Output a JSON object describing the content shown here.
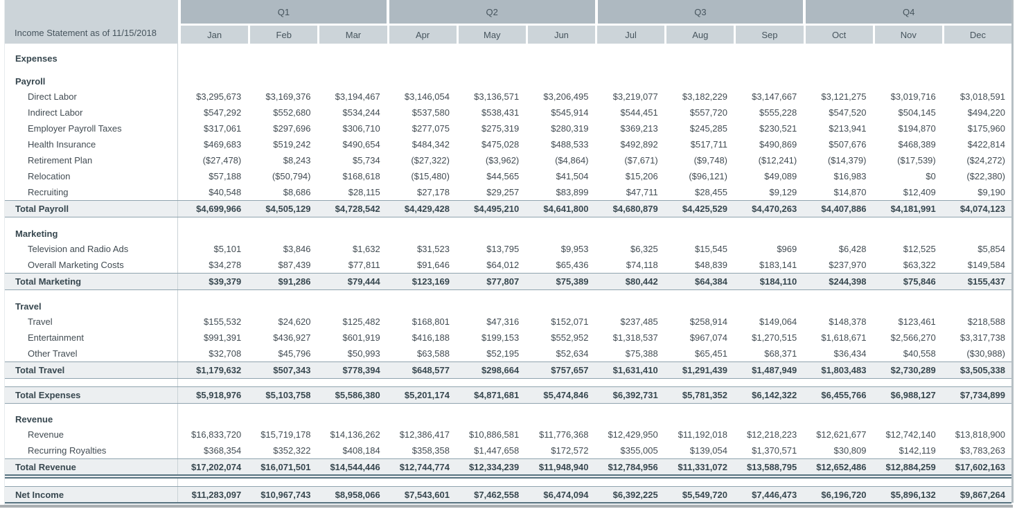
{
  "header": {
    "title": "Income Statement as of 11/15/2018",
    "quarters": [
      {
        "label": "Q1",
        "months": [
          "Jan",
          "Feb",
          "Mar"
        ]
      },
      {
        "label": "Q2",
        "months": [
          "Apr",
          "May",
          "Jun"
        ]
      },
      {
        "label": "Q3",
        "months": [
          "Jul",
          "Aug",
          "Sep"
        ]
      },
      {
        "label": "Q4",
        "months": [
          "Oct",
          "Nov",
          "Dec"
        ]
      }
    ]
  },
  "colors": {
    "quarter_header_bg": "#aeb9c1",
    "month_header_bg": "#ccd4d9",
    "total_row_bg": "#eceff1",
    "total_row_border": "#8fa3ae",
    "double_rule": "#587380",
    "text": "#37474f"
  },
  "table": {
    "rows": [
      {
        "type": "spacer",
        "h": 10
      },
      {
        "type": "section",
        "label": "Expenses"
      },
      {
        "type": "spacer",
        "h": 11
      },
      {
        "type": "section",
        "label": "Payroll"
      },
      {
        "type": "item",
        "label": "Direct Labor",
        "values": [
          "$3,295,673",
          "$3,169,376",
          "$3,194,467",
          "$3,146,054",
          "$3,136,571",
          "$3,206,495",
          "$3,219,077",
          "$3,182,229",
          "$3,147,667",
          "$3,121,275",
          "$3,019,716",
          "$3,018,591"
        ]
      },
      {
        "type": "item",
        "label": "Indirect Labor",
        "values": [
          "$547,292",
          "$552,680",
          "$534,244",
          "$537,580",
          "$538,431",
          "$545,914",
          "$544,451",
          "$557,720",
          "$555,228",
          "$547,520",
          "$504,145",
          "$494,220"
        ]
      },
      {
        "type": "item",
        "label": "Employer Payroll Taxes",
        "values": [
          "$317,061",
          "$297,696",
          "$306,710",
          "$277,075",
          "$275,319",
          "$280,319",
          "$369,213",
          "$245,285",
          "$230,521",
          "$213,941",
          "$194,870",
          "$175,960"
        ]
      },
      {
        "type": "item",
        "label": "Health Insurance",
        "values": [
          "$469,683",
          "$519,242",
          "$490,654",
          "$484,342",
          "$475,028",
          "$488,533",
          "$492,892",
          "$517,711",
          "$490,869",
          "$507,676",
          "$468,389",
          "$422,814"
        ]
      },
      {
        "type": "item",
        "label": "Retirement Plan",
        "values": [
          "($27,478)",
          "$8,243",
          "$5,734",
          "($27,322)",
          "($3,962)",
          "($4,864)",
          "($7,671)",
          "($9,748)",
          "($12,241)",
          "($14,379)",
          "($17,539)",
          "($24,272)"
        ]
      },
      {
        "type": "item",
        "label": "Relocation",
        "values": [
          "$57,188",
          "($50,794)",
          "$168,618",
          "($15,480)",
          "$44,565",
          "$41,504",
          "$15,206",
          "($96,121)",
          "$49,089",
          "$16,983",
          "$0",
          "($22,380)"
        ]
      },
      {
        "type": "item",
        "label": "Recruiting",
        "values": [
          "$40,548",
          "$8,686",
          "$28,115",
          "$27,178",
          "$29,257",
          "$83,899",
          "$47,711",
          "$28,455",
          "$9,129",
          "$14,870",
          "$12,409",
          "$9,190"
        ]
      },
      {
        "type": "total",
        "label": "Total Payroll",
        "values": [
          "$4,699,966",
          "$4,505,129",
          "$4,728,542",
          "$4,429,428",
          "$4,495,210",
          "$4,641,800",
          "$4,680,879",
          "$4,425,529",
          "$4,470,263",
          "$4,407,886",
          "$4,181,991",
          "$4,074,123"
        ]
      },
      {
        "type": "spacer",
        "h": 12
      },
      {
        "type": "section",
        "label": "Marketing"
      },
      {
        "type": "item",
        "label": "Television and Radio Ads",
        "values": [
          "$5,101",
          "$3,846",
          "$1,632",
          "$31,523",
          "$13,795",
          "$9,953",
          "$6,325",
          "$15,545",
          "$969",
          "$6,428",
          "$12,525",
          "$5,854"
        ]
      },
      {
        "type": "item",
        "label": "Overall Marketing Costs",
        "values": [
          "$34,278",
          "$87,439",
          "$77,811",
          "$91,646",
          "$64,012",
          "$65,436",
          "$74,118",
          "$48,839",
          "$183,141",
          "$237,970",
          "$63,322",
          "$149,584"
        ]
      },
      {
        "type": "total",
        "label": "Total Marketing",
        "values": [
          "$39,379",
          "$91,286",
          "$79,444",
          "$123,169",
          "$77,807",
          "$75,389",
          "$80,442",
          "$64,384",
          "$184,110",
          "$244,398",
          "$75,846",
          "$155,437"
        ]
      },
      {
        "type": "spacer",
        "h": 12
      },
      {
        "type": "section",
        "label": "Travel"
      },
      {
        "type": "item",
        "label": "Travel",
        "values": [
          "$155,532",
          "$24,620",
          "$125,482",
          "$168,801",
          "$47,316",
          "$152,071",
          "$237,485",
          "$258,914",
          "$149,064",
          "$148,378",
          "$123,461",
          "$218,588"
        ]
      },
      {
        "type": "item",
        "label": "Entertainment",
        "values": [
          "$991,391",
          "$436,927",
          "$601,919",
          "$416,188",
          "$199,153",
          "$552,952",
          "$1,318,537",
          "$967,074",
          "$1,270,515",
          "$1,618,671",
          "$2,566,270",
          "$3,317,738"
        ]
      },
      {
        "type": "item",
        "label": "Other Travel",
        "values": [
          "$32,708",
          "$45,796",
          "$50,993",
          "$63,588",
          "$52,195",
          "$52,634",
          "$75,388",
          "$65,451",
          "$68,371",
          "$36,434",
          "$40,558",
          "($30,988)"
        ]
      },
      {
        "type": "total",
        "label": "Total Travel",
        "values": [
          "$1,179,632",
          "$507,343",
          "$778,394",
          "$648,577",
          "$298,664",
          "$757,657",
          "$1,631,410",
          "$1,291,439",
          "$1,487,949",
          "$1,803,483",
          "$2,730,289",
          "$3,505,338"
        ]
      },
      {
        "type": "spacer",
        "h": 11
      },
      {
        "type": "total",
        "label": "Total Expenses",
        "values": [
          "$5,918,976",
          "$5,103,758",
          "$5,586,380",
          "$5,201,174",
          "$4,871,681",
          "$5,474,846",
          "$6,392,731",
          "$5,781,352",
          "$6,142,322",
          "$6,455,766",
          "$6,988,127",
          "$7,734,899"
        ]
      },
      {
        "type": "spacer",
        "h": 11
      },
      {
        "type": "section",
        "label": "Revenue"
      },
      {
        "type": "item",
        "label": "Revenue",
        "values": [
          "$16,833,720",
          "$15,719,178",
          "$14,136,262",
          "$12,386,417",
          "$10,886,581",
          "$11,776,368",
          "$12,429,950",
          "$11,192,018",
          "$12,218,223",
          "$12,621,677",
          "$12,742,140",
          "$13,818,900"
        ]
      },
      {
        "type": "item",
        "label": "Recurring Royalties",
        "values": [
          "$368,354",
          "$352,322",
          "$408,184",
          "$358,358",
          "$1,447,658",
          "$172,572",
          "$355,005",
          "$139,054",
          "$1,370,571",
          "$30,809",
          "$142,119",
          "$3,783,263"
        ]
      },
      {
        "type": "grand",
        "label": "Total Revenue",
        "values": [
          "$17,202,074",
          "$16,071,501",
          "$14,544,446",
          "$12,744,774",
          "$12,334,239",
          "$11,948,940",
          "$12,784,956",
          "$11,331,072",
          "$13,588,795",
          "$12,652,486",
          "$12,884,259",
          "$17,602,163"
        ]
      },
      {
        "type": "spacer",
        "h": 11
      },
      {
        "type": "grand",
        "label": "Net Income",
        "values": [
          "$11,283,097",
          "$10,967,743",
          "$8,958,066",
          "$7,543,601",
          "$7,462,558",
          "$6,474,094",
          "$6,392,225",
          "$5,549,720",
          "$7,446,473",
          "$6,196,720",
          "$5,896,132",
          "$9,867,264"
        ]
      }
    ]
  }
}
